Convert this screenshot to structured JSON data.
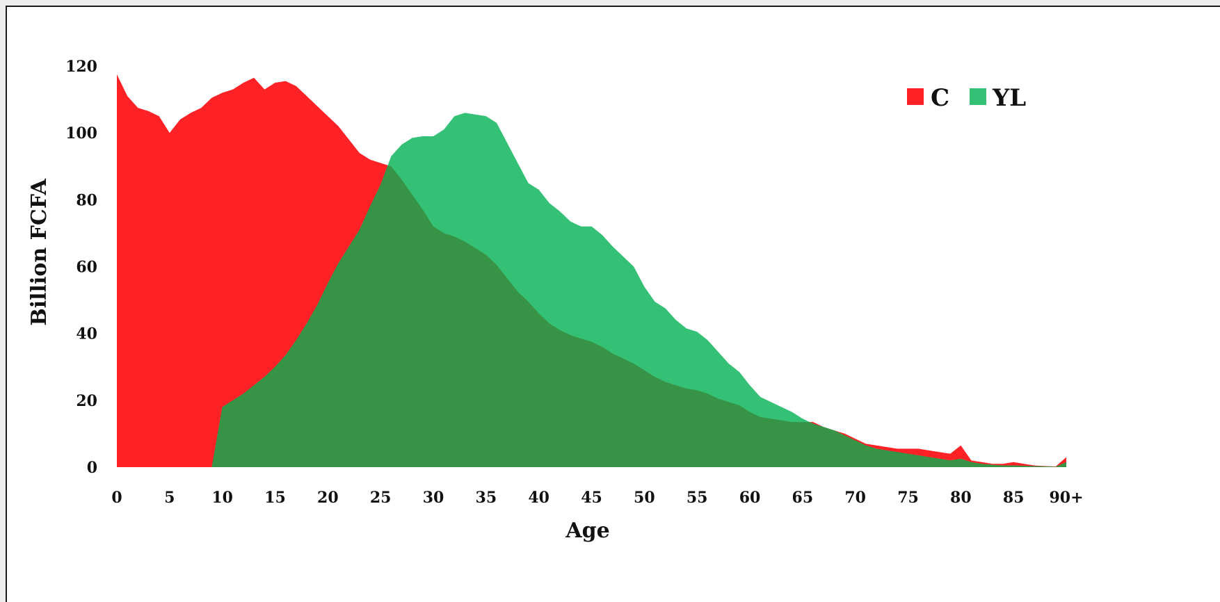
{
  "chart_data": {
    "type": "area",
    "xlabel": "Age",
    "ylabel": "Billion FCFA",
    "ylim": [
      0,
      120
    ],
    "yticks": [
      0,
      20,
      40,
      60,
      80,
      100,
      120
    ],
    "x": [
      0,
      1,
      2,
      3,
      4,
      5,
      6,
      7,
      8,
      9,
      10,
      11,
      12,
      13,
      14,
      15,
      16,
      17,
      18,
      19,
      20,
      21,
      22,
      23,
      24,
      25,
      26,
      27,
      28,
      29,
      30,
      31,
      32,
      33,
      34,
      35,
      36,
      37,
      38,
      39,
      40,
      41,
      42,
      43,
      44,
      45,
      46,
      47,
      48,
      49,
      50,
      51,
      52,
      53,
      54,
      55,
      56,
      57,
      58,
      59,
      60,
      61,
      62,
      63,
      64,
      65,
      66,
      67,
      68,
      69,
      70,
      71,
      72,
      73,
      74,
      75,
      76,
      77,
      78,
      79,
      80,
      81,
      82,
      83,
      84,
      85,
      86,
      87,
      88,
      89,
      90
    ],
    "xtick_values": [
      0,
      5,
      10,
      15,
      20,
      25,
      30,
      35,
      40,
      45,
      50,
      55,
      60,
      65,
      70,
      75,
      80,
      85,
      90
    ],
    "xtick_labels": [
      "0",
      "5",
      "10",
      "15",
      "20",
      "25",
      "30",
      "35",
      "40",
      "45",
      "50",
      "55",
      "60",
      "65",
      "70",
      "75",
      "80",
      "85",
      "90+"
    ],
    "grid": false,
    "legend_position": "top-right",
    "series": [
      {
        "name": "C",
        "color": "#fe2125",
        "values": [
          117.5,
          111,
          107.5,
          106.5,
          105,
          100,
          104,
          106,
          107.5,
          110.5,
          112,
          113,
          115,
          116.5,
          113,
          115,
          115.5,
          114,
          111,
          108,
          105,
          102,
          98,
          94,
          92,
          91,
          90,
          86,
          81.5,
          77,
          72,
          70,
          69,
          67.5,
          65.5,
          63.5,
          60.5,
          56.5,
          52.5,
          49.5,
          46,
          43,
          41,
          39.5,
          38.5,
          37.5,
          36,
          34,
          32.5,
          31,
          29,
          27,
          25.5,
          24.5,
          23.5,
          23,
          22,
          20.5,
          19.5,
          18.5,
          16.5,
          15,
          14.5,
          14,
          13.5,
          13.5,
          13.5,
          12,
          11,
          10,
          8.5,
          7,
          6.5,
          6,
          5.5,
          5.5,
          5.5,
          5,
          4.5,
          4,
          6.5,
          2,
          1.5,
          1,
          1,
          1.5,
          1,
          0.5,
          0.3,
          0.2,
          3
        ]
      },
      {
        "name": "YL",
        "color": "#34c075",
        "values": [
          0,
          0,
          0,
          0,
          0,
          0,
          0,
          0,
          0,
          0,
          18,
          20,
          22,
          24.5,
          27,
          30,
          33.5,
          38,
          43,
          48.5,
          55,
          61,
          66,
          71,
          78,
          84.5,
          93,
          96.5,
          98.5,
          99,
          99,
          101,
          105,
          106,
          105.5,
          105,
          103,
          97,
          91,
          85,
          83,
          79,
          76.5,
          73.5,
          72,
          72,
          69.5,
          66,
          63,
          60,
          54,
          49.5,
          47.5,
          44,
          41.5,
          40.5,
          38,
          34.5,
          31,
          28.5,
          24.5,
          21,
          19.5,
          18,
          16.5,
          14.5,
          13,
          12,
          11,
          9.5,
          8,
          6.5,
          5.5,
          5,
          4.5,
          4,
          3.5,
          3,
          2.5,
          2,
          2.5,
          1.5,
          1,
          0.7,
          0.5,
          0.5,
          0.4,
          0.3,
          0.2,
          0.1,
          1.5
        ]
      }
    ],
    "overlap_color": "#379447"
  }
}
